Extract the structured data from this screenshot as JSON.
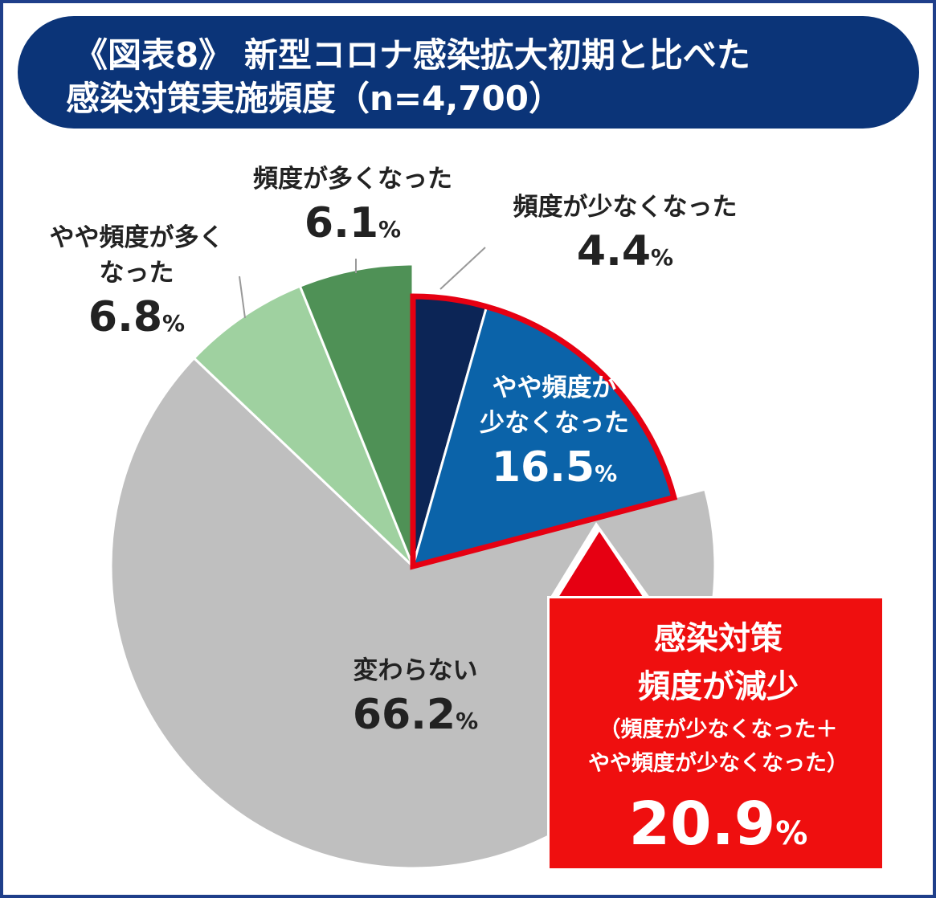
{
  "header": {
    "title_line1": "《図表8》 新型コロナ感染拡大初期と比べた",
    "title_line2": "感染対策実施頻度（n=4,700）"
  },
  "chart_data": {
    "type": "pie",
    "start": "12 o'clock",
    "direction": "clockwise",
    "unit": "%",
    "slices": [
      {
        "label": "頻度が少なくなった",
        "value": 4.4,
        "color": "#0c2556"
      },
      {
        "label": "やや頻度が少なくなった",
        "label_lines": [
          "やや頻度が",
          "少なくなった"
        ],
        "value": 16.5,
        "color": "#0b63a9"
      },
      {
        "label": "変わらない",
        "value": 66.2,
        "color": "#bfbfbf"
      },
      {
        "label": "やや頻度が多くなった",
        "label_lines": [
          "やや頻度が多く",
          "なった"
        ],
        "value": 6.8,
        "color": "#9fd1a0"
      },
      {
        "label": "頻度が多くなった",
        "value": 6.1,
        "color": "#4f9156"
      }
    ],
    "highlight": {
      "slices": [
        "頻度が少なくなった",
        "やや頻度が少なくなった"
      ],
      "border_color": "#e60012",
      "title_lines": [
        "感染対策",
        "頻度が減少"
      ],
      "sub_lines": [
        "（頻度が少なくなった＋",
        "やや頻度が少なくなった）"
      ],
      "value": 20.9
    }
  }
}
